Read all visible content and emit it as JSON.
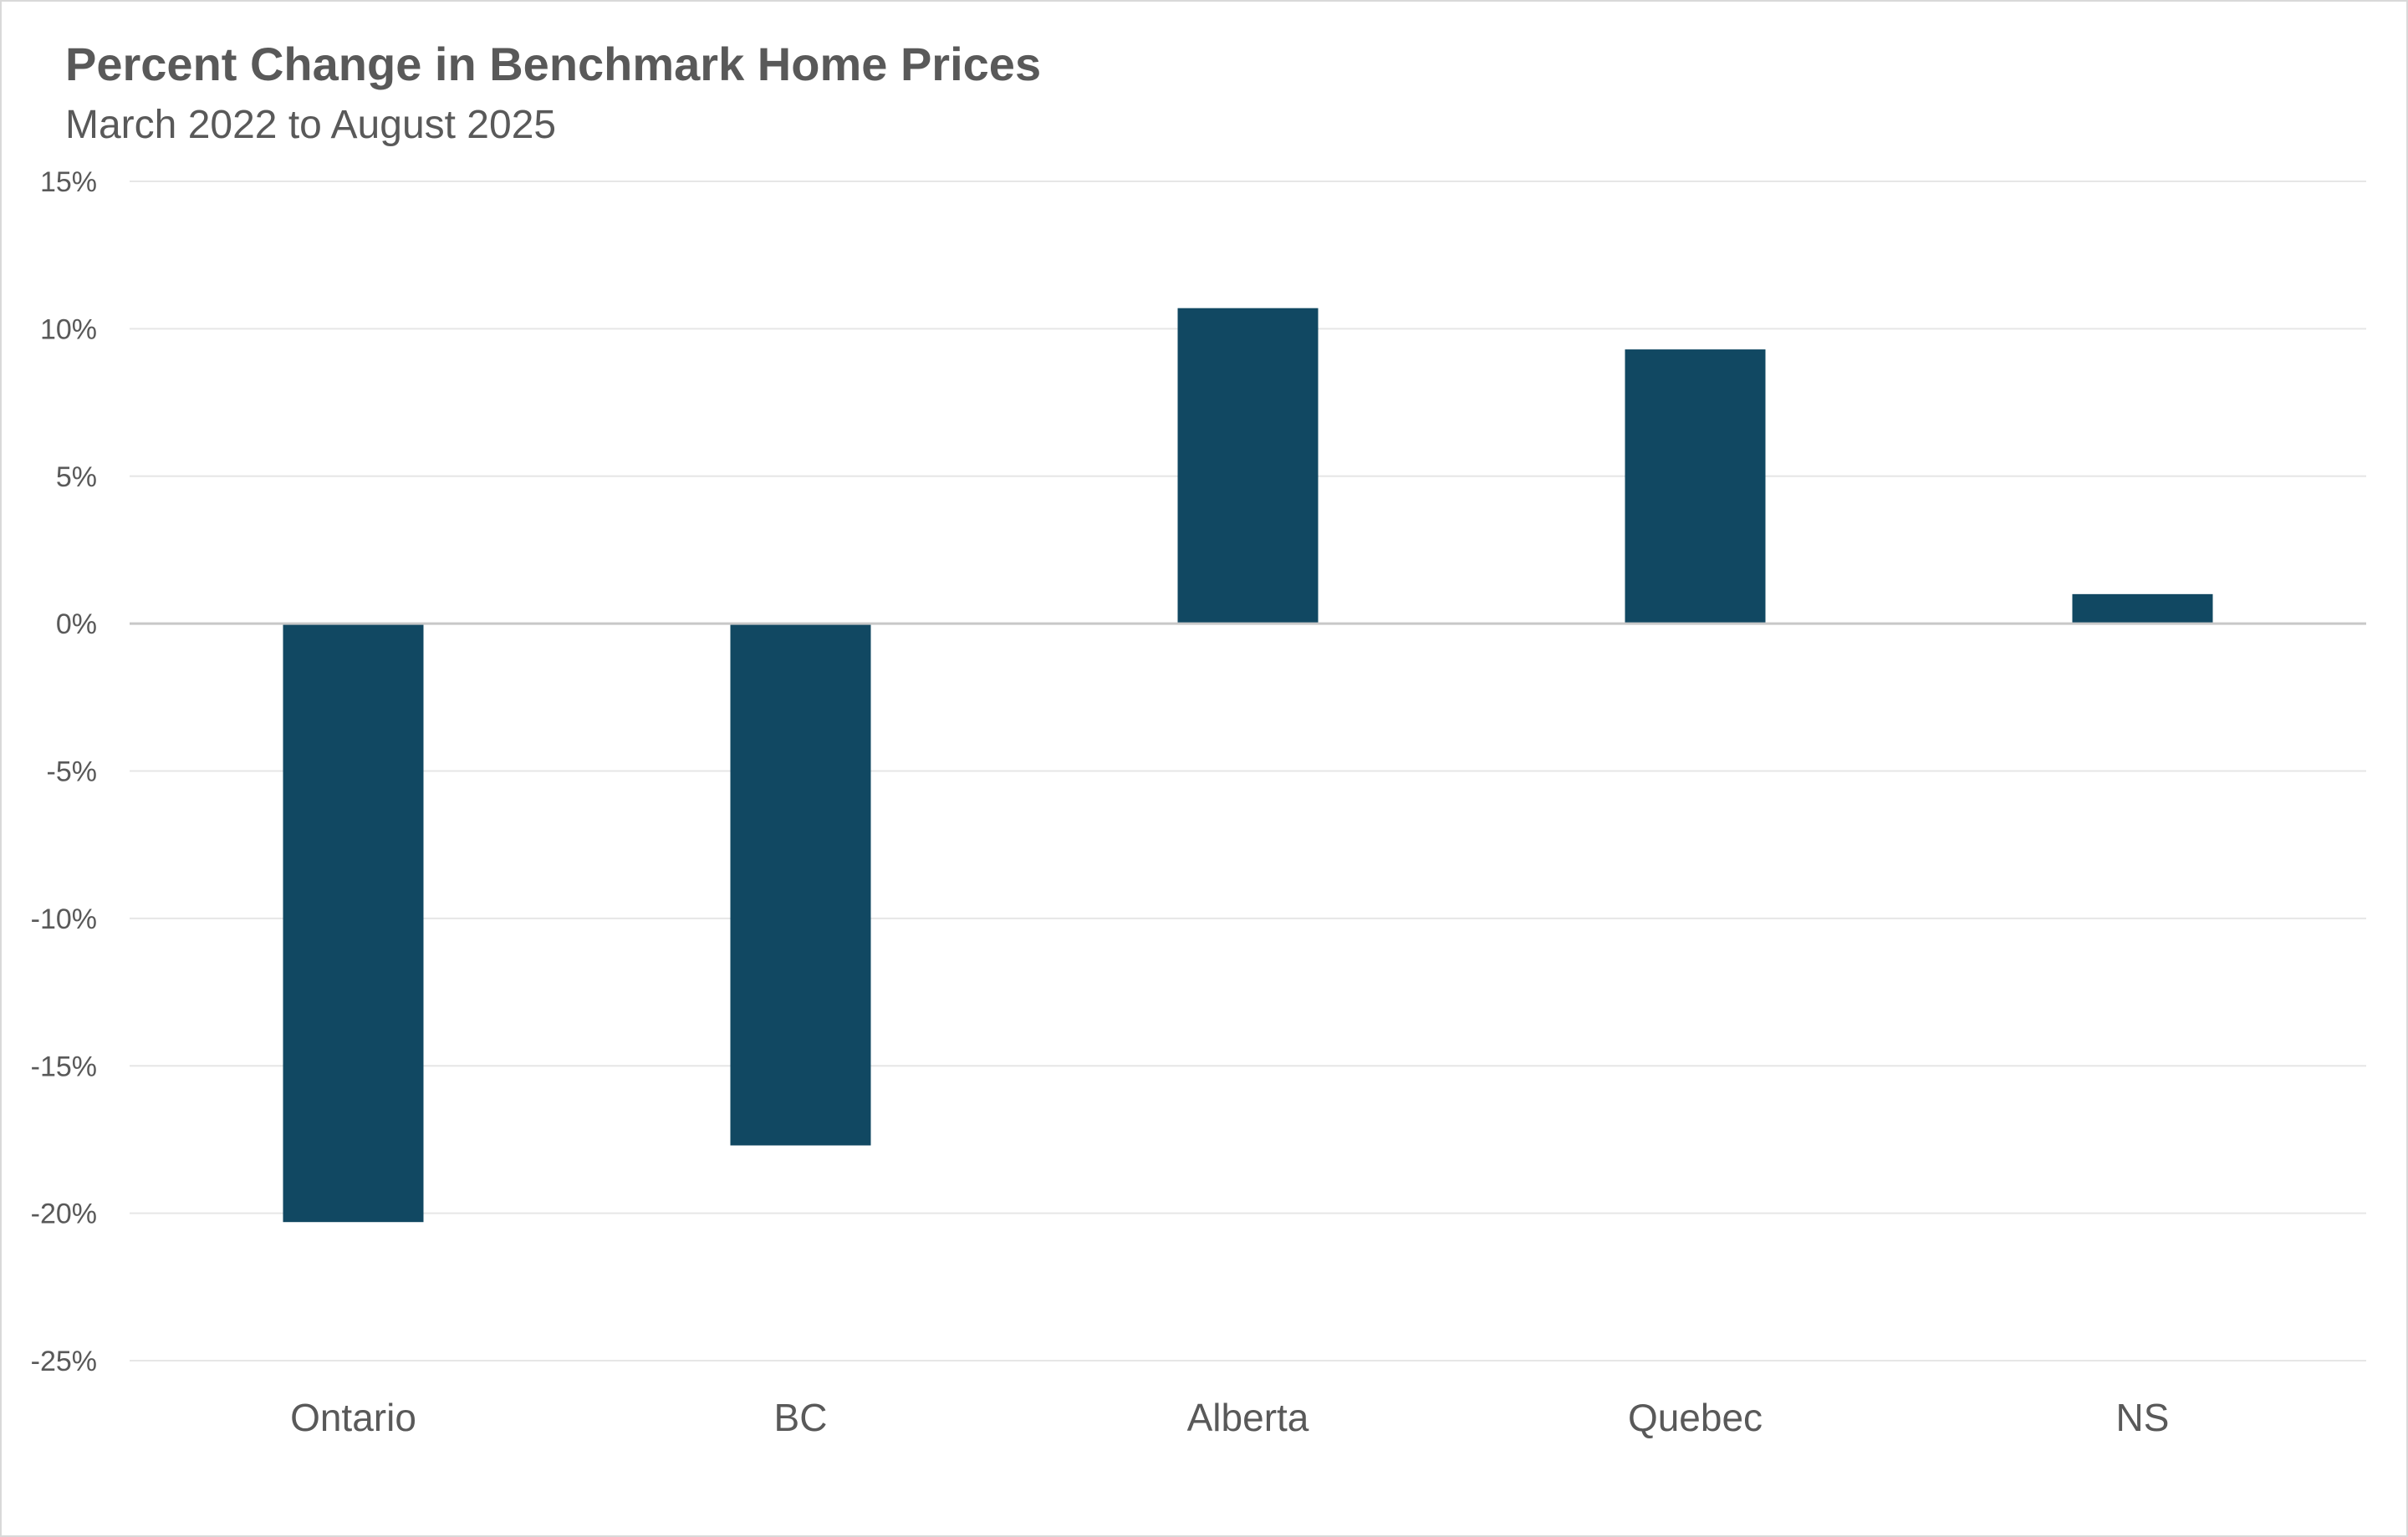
{
  "chart_data": {
    "type": "bar",
    "title": "Percent Change in Benchmark Home Prices",
    "subtitle": "March 2022 to August 2025",
    "categories": [
      "Ontario",
      "BC",
      "Alberta",
      "Quebec",
      "NS"
    ],
    "series": [
      {
        "values": [
          -20.3,
          -17.7,
          10.7,
          9.3,
          1.0
        ]
      }
    ],
    "ylim": [
      -25,
      15
    ],
    "yticks": [
      15,
      10,
      5,
      0,
      -5,
      -10,
      -15,
      -20,
      -25
    ],
    "ytick_labels": [
      "15%",
      "10%",
      "5%",
      "0%",
      "-5%",
      "-10%",
      "-15%",
      "-20%",
      "-25%"
    ],
    "xlabel": "",
    "ylabel": "",
    "grid": true,
    "legend": "none",
    "colors": {
      "bar": "#114862",
      "grid": "#e6e6e6",
      "zero_line": "#c8c8c8",
      "text": "#595959"
    }
  }
}
